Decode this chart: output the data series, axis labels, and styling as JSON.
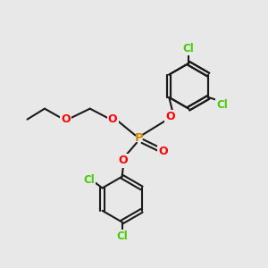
{
  "bg_color": "#e8e8e8",
  "bond_color": "#1a1a1a",
  "o_color": "#ff0000",
  "p_color": "#cc8800",
  "cl_color": "#44cc00",
  "line_width": 1.5,
  "figsize": [
    3.0,
    3.0
  ],
  "dpi": 100,
  "xlim": [
    0,
    10
  ],
  "ylim": [
    0,
    10
  ]
}
